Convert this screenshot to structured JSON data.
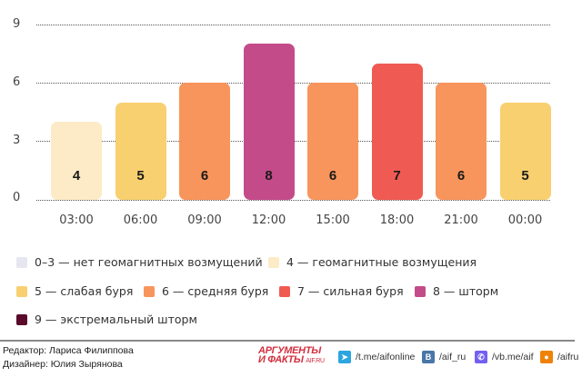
{
  "chart_data": {
    "type": "bar",
    "title": "",
    "xlabel": "",
    "ylabel": "",
    "ylim": [
      0,
      9
    ],
    "yticks": [
      0,
      3,
      6,
      9
    ],
    "grid": true,
    "categories": [
      "03:00",
      "06:00",
      "09:00",
      "12:00",
      "15:00",
      "18:00",
      "21:00",
      "00:00"
    ],
    "values": [
      4,
      5,
      6,
      8,
      6,
      7,
      6,
      5
    ],
    "value_labels": [
      "4",
      "5",
      "6",
      "8",
      "6",
      "7",
      "6",
      "5"
    ],
    "legend_position": "bottom"
  },
  "axis": {
    "yticks": [
      "0",
      "3",
      "6",
      "9"
    ]
  },
  "colors": {
    "level_0_3": "#e6e6f0",
    "level_4": "#fcebc6",
    "level_5": "#f8d070",
    "level_6": "#f8955c",
    "level_7": "#ef5a52",
    "level_8": "#c44b8a",
    "level_9": "#5a0a2a"
  },
  "legend": [
    {
      "label": "0–3 — нет геомагнитных возмущений",
      "color": "#e6e6f0"
    },
    {
      "label": "4 — геомагнитные возмущения",
      "color": "#fcebc6"
    },
    {
      "label": "5 — слабая буря",
      "color": "#f8d070"
    },
    {
      "label": "6 — средняя буря",
      "color": "#f8955c"
    },
    {
      "label": "7 — сильная буря",
      "color": "#ef5a52"
    },
    {
      "label": "8 — шторм",
      "color": "#c44b8a"
    },
    {
      "label": "9 — экстремальный шторм",
      "color": "#5a0a2a"
    }
  ],
  "footer": {
    "editor": "Редактор: Лариса Филиппова",
    "designer": "Дизайнер: Юлия Зырянова",
    "logo_line1": "АРГУМЕНТЫ",
    "logo_line2": "И ФАКТЫ",
    "logo_site": "AIF.RU",
    "social": [
      {
        "icon": "telegram-icon",
        "label": "/t.me/aifonline",
        "color": "#2ca5e0"
      },
      {
        "icon": "vk-icon",
        "label": "/aif_ru",
        "color": "#4a76a8"
      },
      {
        "icon": "viber-icon",
        "label": "/vb.me/aif",
        "color": "#7360f2"
      },
      {
        "icon": "odnoklassniki-icon",
        "label": "/aifru",
        "color": "#ee8208"
      }
    ]
  }
}
